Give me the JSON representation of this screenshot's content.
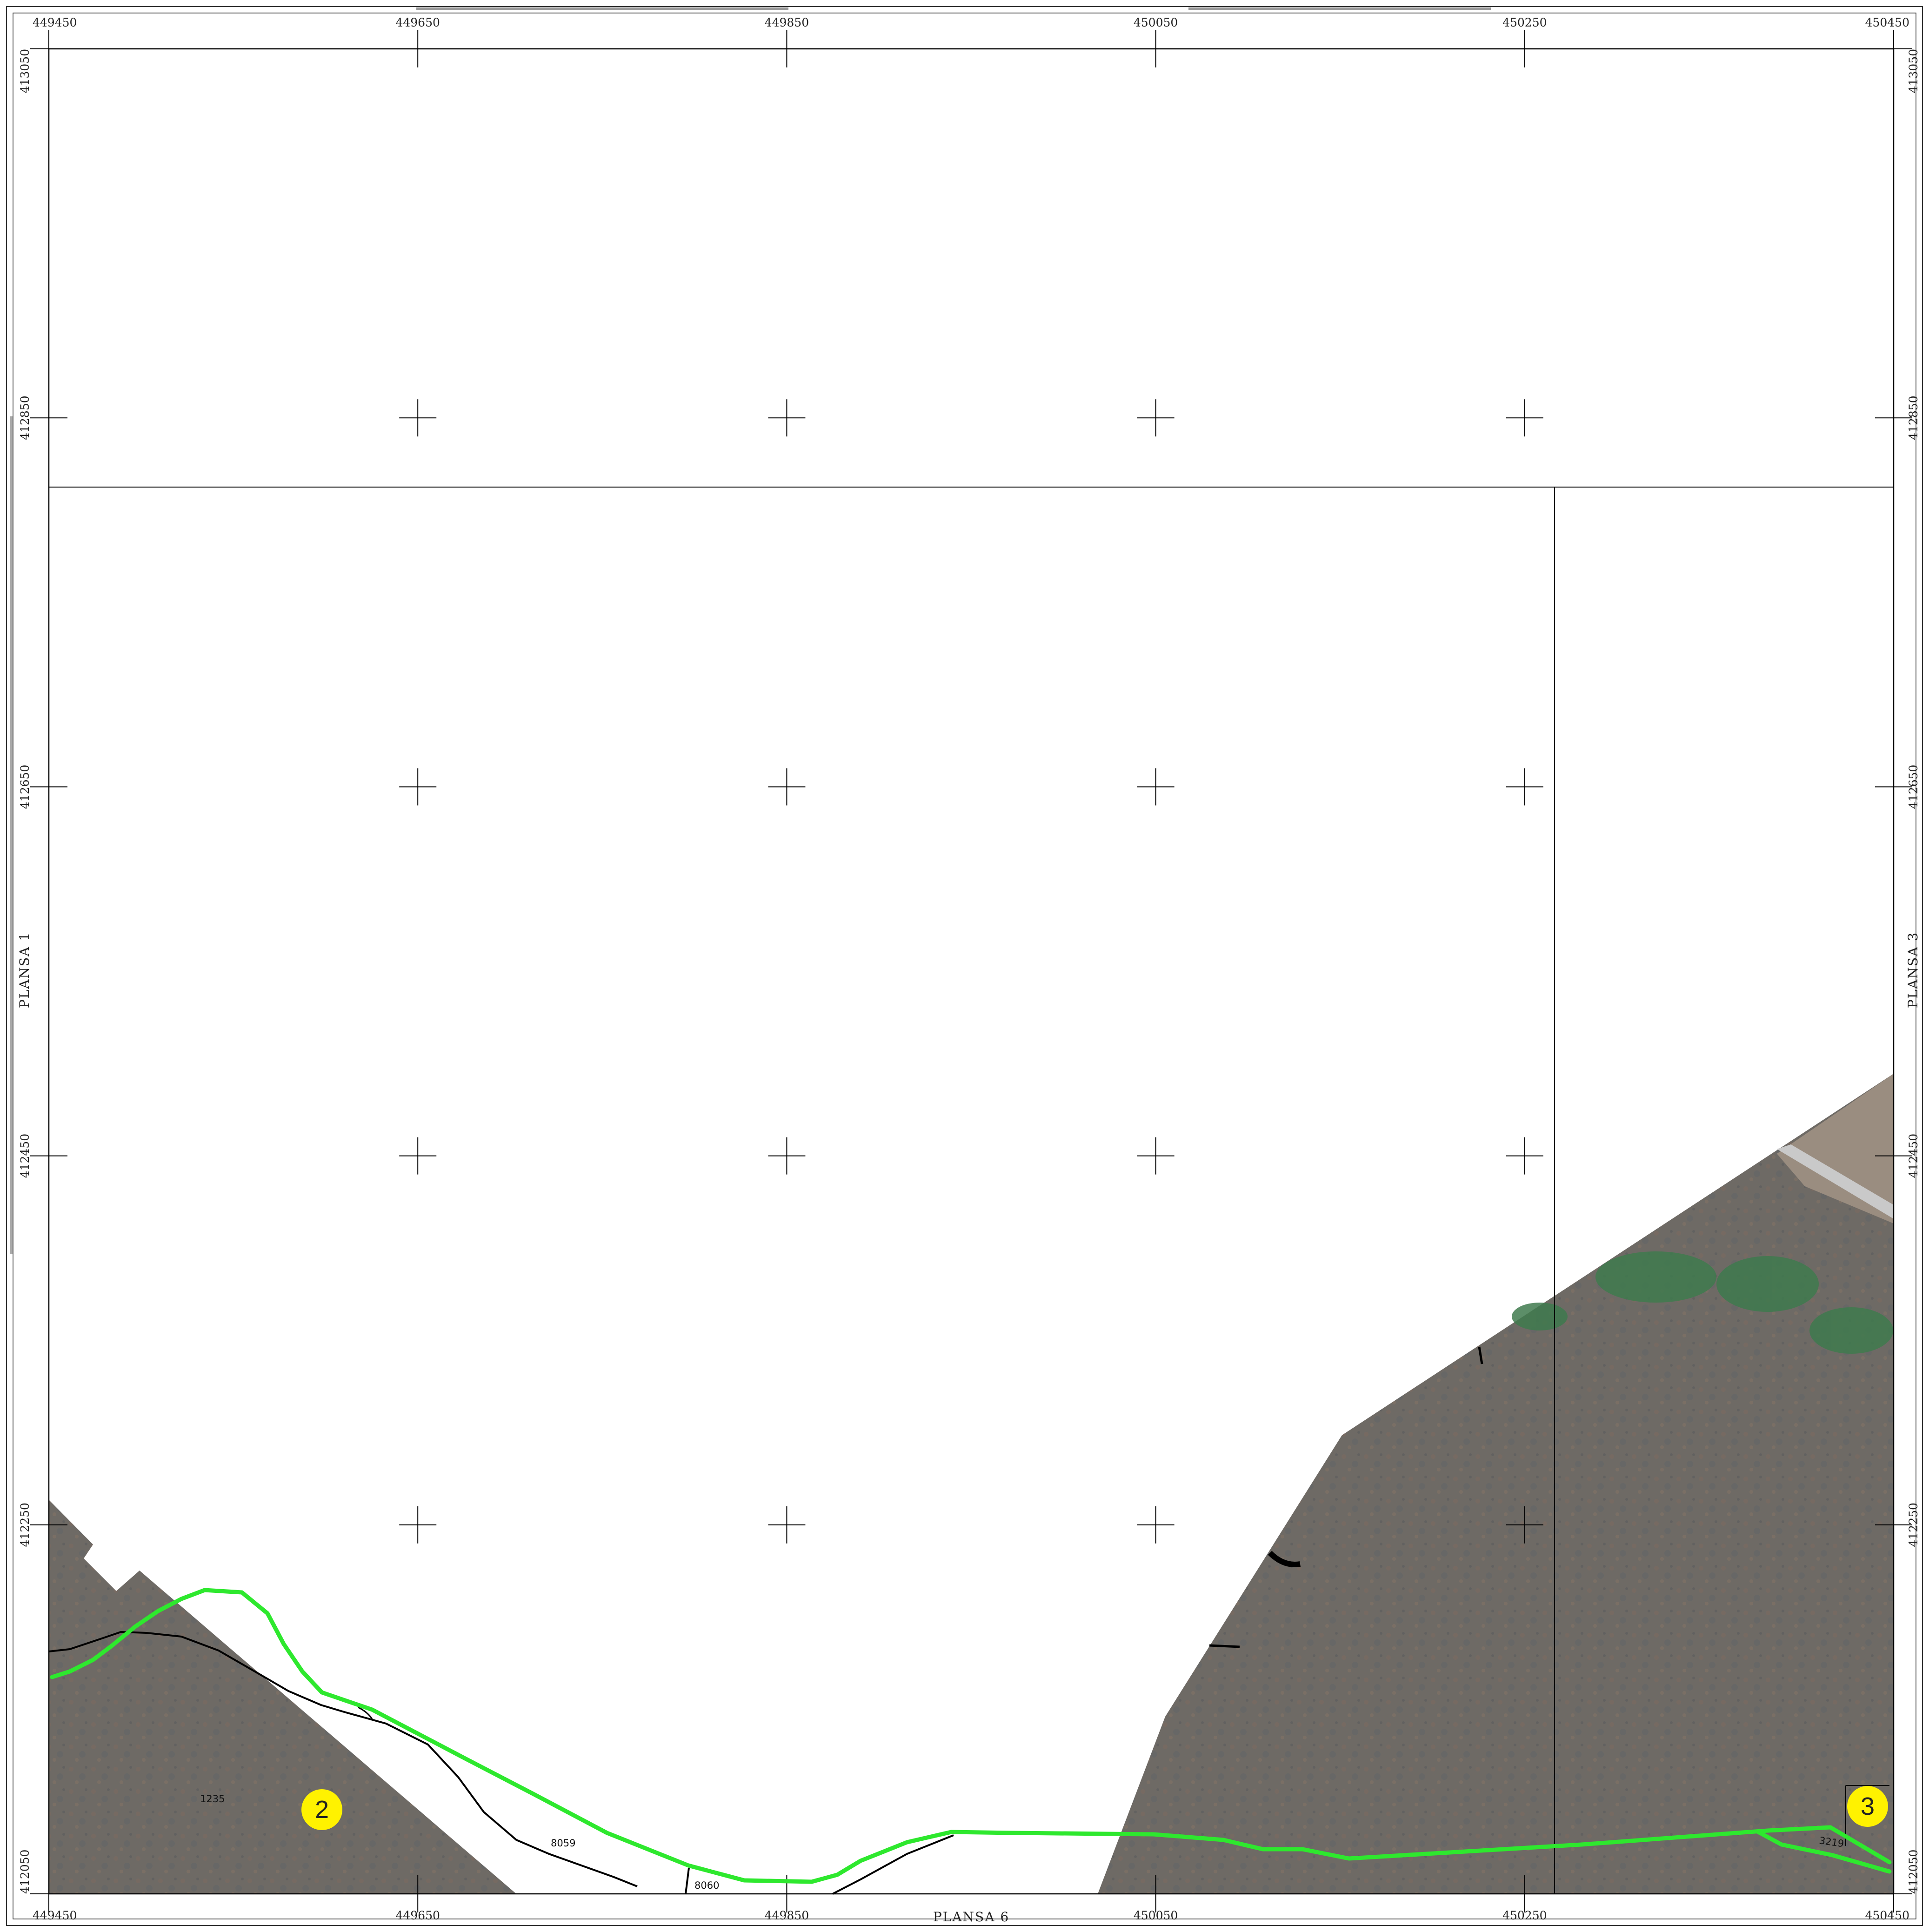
{
  "colors": {
    "route": "#2ee82e",
    "marker": "#fff200",
    "ink": "#000000",
    "ground": "#6f6b66"
  },
  "map": {
    "x_labels": [
      "449450",
      "449650",
      "449850",
      "450050",
      "450250",
      "450450"
    ],
    "y_labels": [
      "413050",
      "412850",
      "412650",
      "412450",
      "412250",
      "412050"
    ],
    "sheets": {
      "left": "PLANSA  1",
      "right": "PLANSA  3",
      "bottom": "PLANSA  6"
    },
    "parcels": {
      "p1235": "1235",
      "p8059": "8059",
      "p8060": "8060",
      "p3219": "3219"
    },
    "points": {
      "pt2": "2",
      "pt3": "3"
    }
  }
}
